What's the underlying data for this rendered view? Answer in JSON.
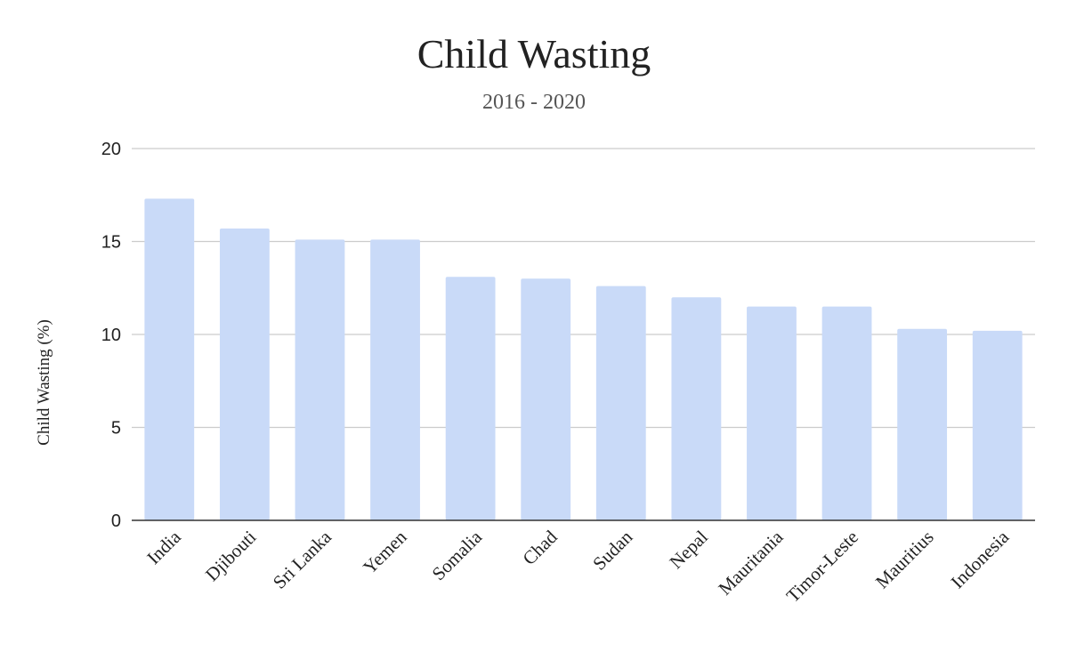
{
  "chart_data": {
    "type": "bar",
    "title": "Child Wasting",
    "subtitle": "2016 - 2020",
    "xlabel": "",
    "ylabel": "Child Wasting (%)",
    "categories": [
      "India",
      "Djibouti",
      "Sri Lanka",
      "Yemen",
      "Somalia",
      "Chad",
      "Sudan",
      "Nepal",
      "Mauritania",
      "Timor-Leste",
      "Mauritius",
      "Indonesia"
    ],
    "values": [
      17.3,
      15.7,
      15.1,
      15.1,
      13.1,
      13.0,
      12.6,
      12.0,
      11.5,
      11.5,
      10.3,
      10.2
    ],
    "ylim": [
      0,
      20
    ],
    "yticks": [
      0,
      5,
      10,
      15,
      20
    ],
    "grid": true,
    "legend": "none",
    "bar_color": "#c9daf8",
    "grid_color": "#cccccc",
    "axis_color": "#333333"
  }
}
